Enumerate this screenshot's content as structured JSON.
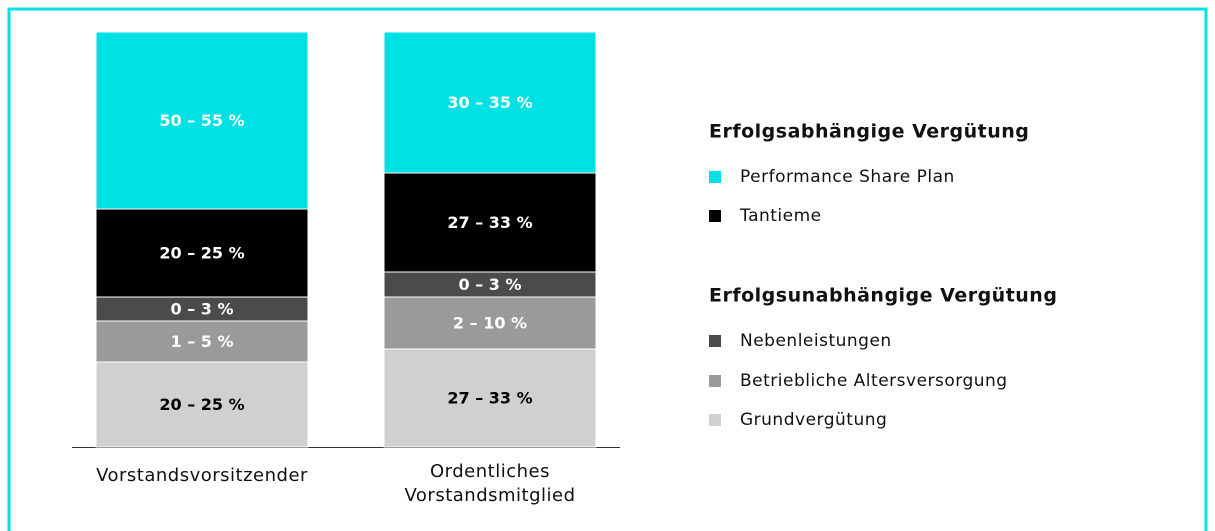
{
  "bars": [
    {
      "category": [
        "Vorstandsvorsitzender"
      ],
      "segments": [
        "50 – 55 %",
        "20 – 25 %",
        "0 – 3 %",
        "1 – 5 %",
        "20 – 25 %"
      ]
    },
    {
      "category": [
        "Ordentliches",
        "Vorstandsmitglied"
      ],
      "segments": [
        "30 – 35 %",
        "27 – 33 %",
        "0 – 3 %",
        "2 – 10 %",
        "27 – 33 %"
      ]
    }
  ],
  "legend": {
    "groups": [
      {
        "title": "Erfolgsabhängige Vergütung",
        "items": [
          "Performance Share Plan",
          "Tantieme"
        ]
      },
      {
        "title": "Erfolgsunabhängige Vergütung",
        "items": [
          "Nebenleistungen",
          "Betriebliche Altersversorgung",
          "Grundvergütung"
        ]
      }
    ]
  }
}
